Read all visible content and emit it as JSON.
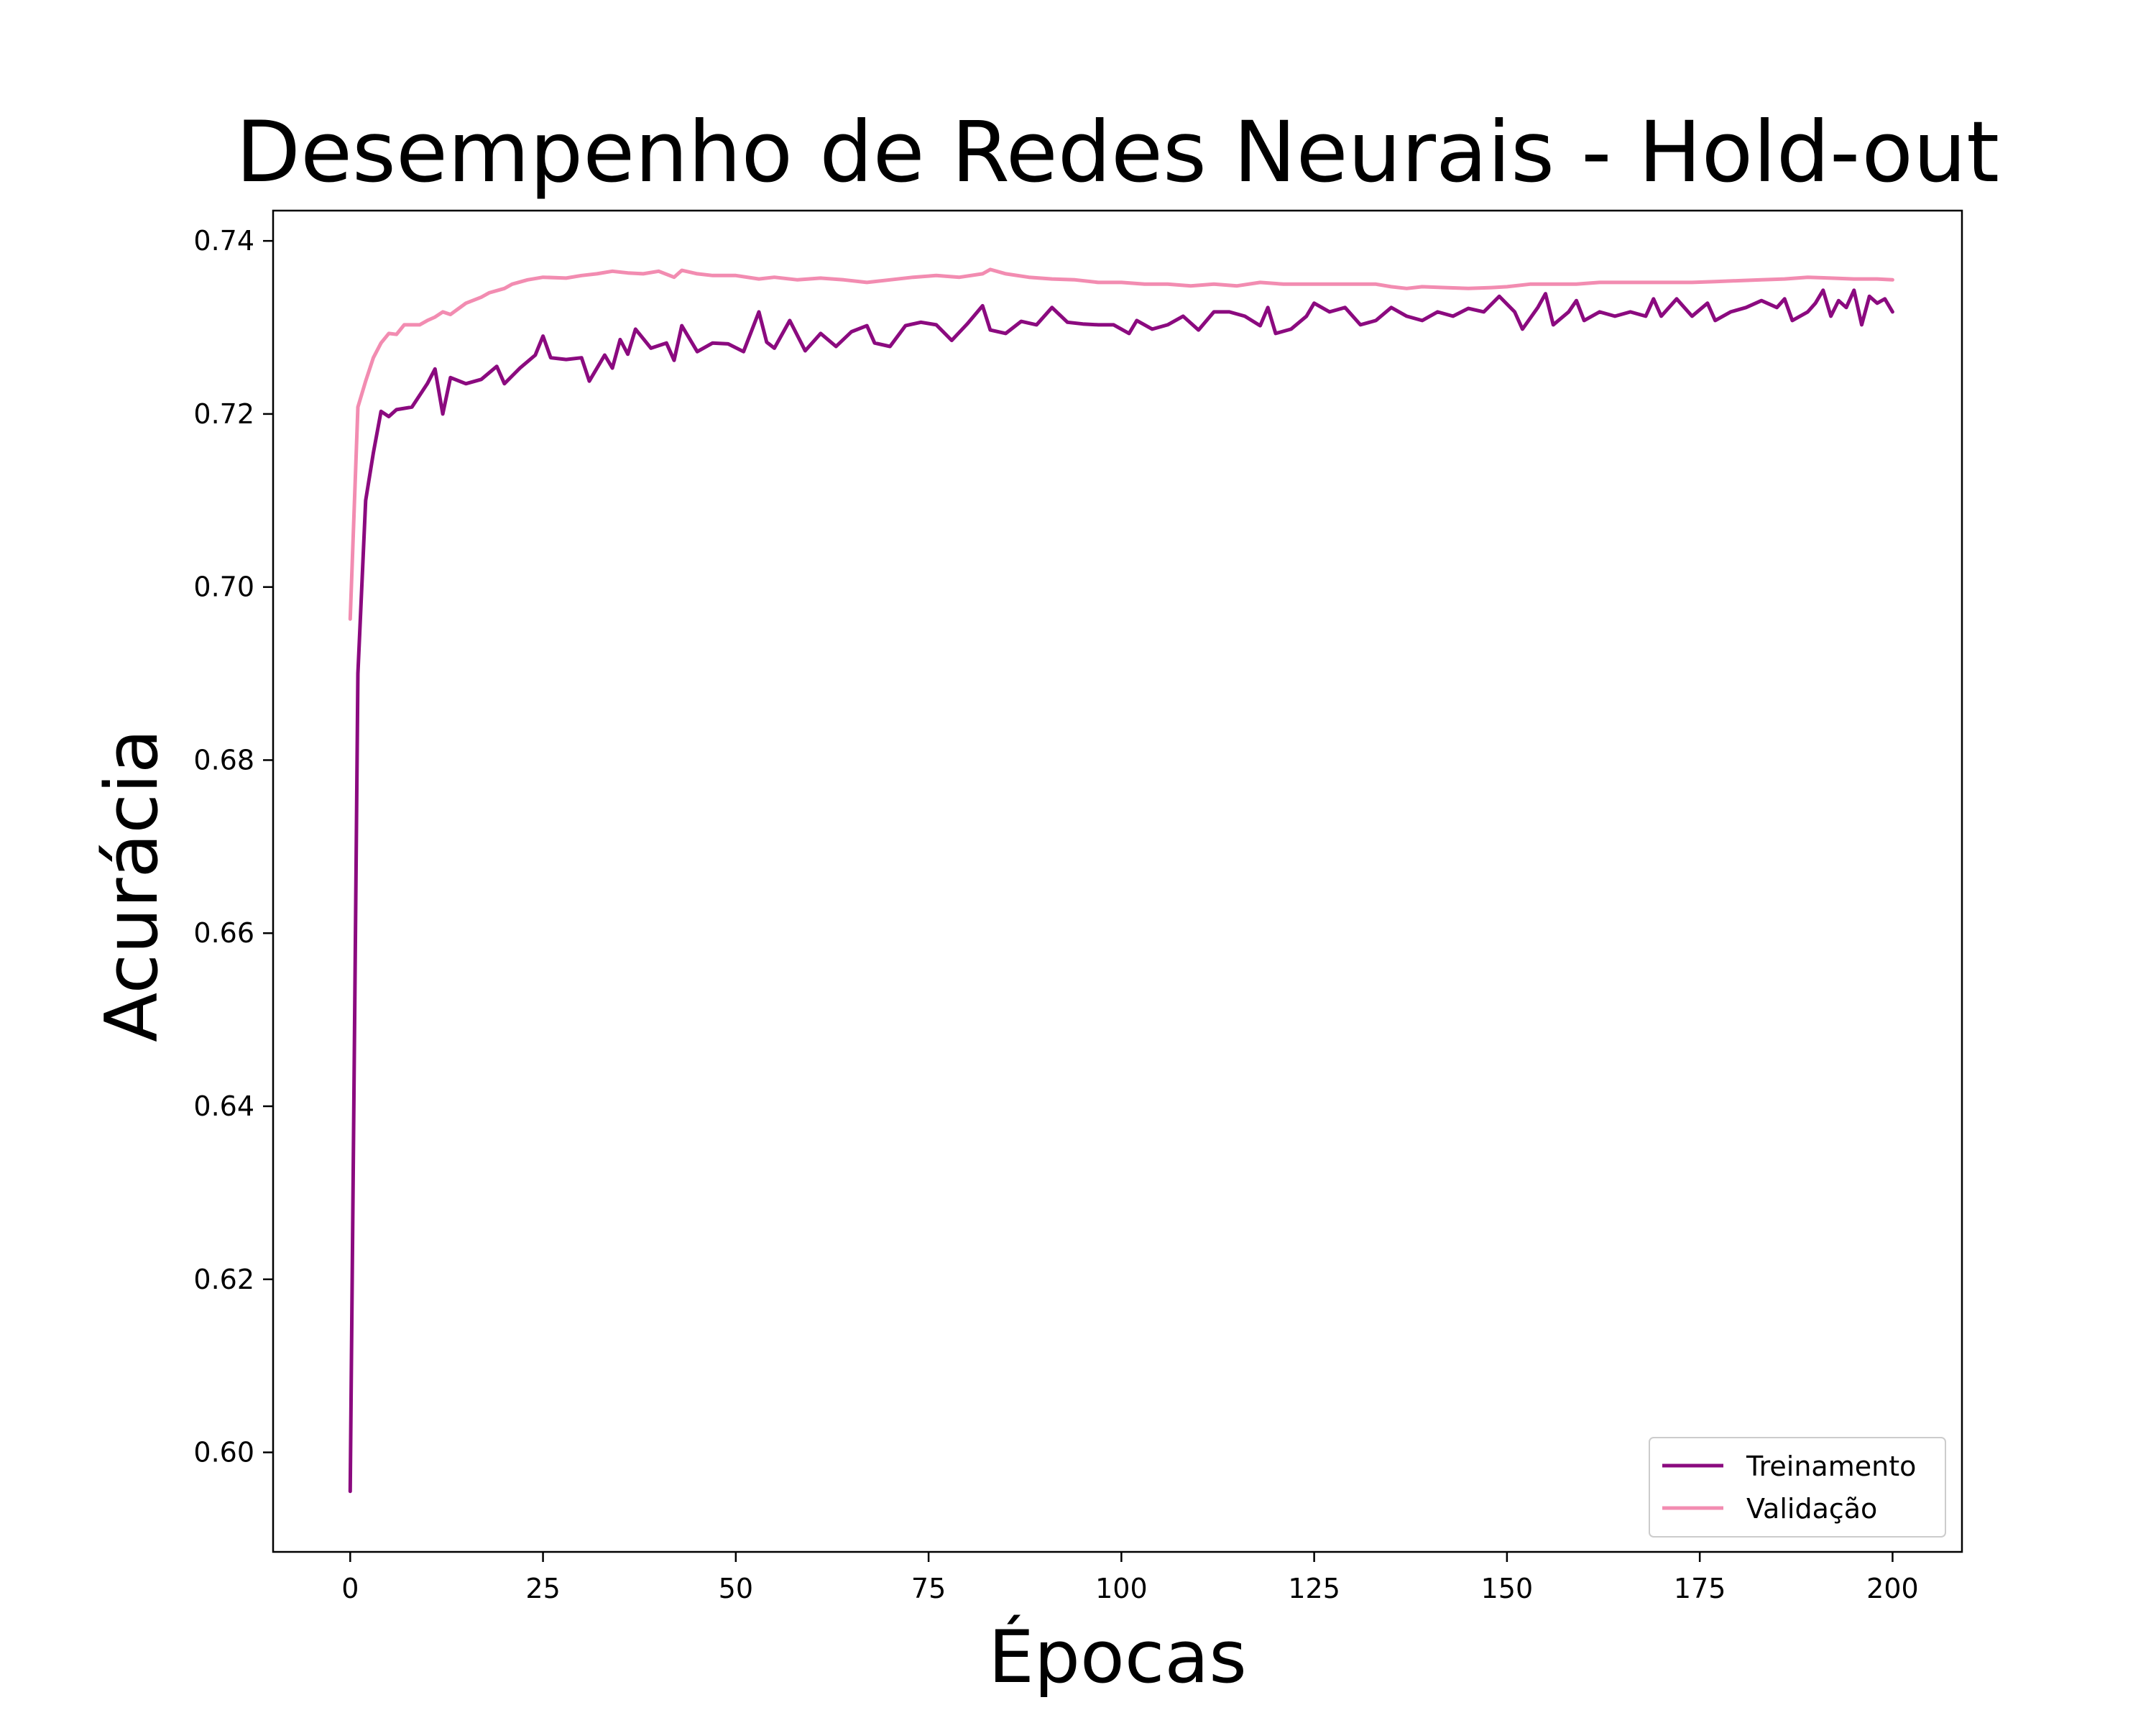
{
  "chart_data": {
    "type": "line",
    "title": "Desempenho de Redes Neurais - Hold-out",
    "xlabel": "Épocas",
    "ylabel": "Acurácia",
    "xlim": [
      -10,
      209
    ],
    "ylim": [
      0.5885,
      0.7435
    ],
    "xticks": [
      0,
      25,
      50,
      75,
      100,
      125,
      150,
      175,
      200
    ],
    "yticks": [
      0.6,
      0.62,
      0.64,
      0.66,
      0.68,
      0.7,
      0.72,
      0.74
    ],
    "grid": false,
    "legend_position": "lower right",
    "series": [
      {
        "name": "Treinamento",
        "color": "#8b0a7f",
        "keypoints": [
          [
            0,
            0.5955
          ],
          [
            1,
            0.69
          ],
          [
            2,
            0.71
          ],
          [
            3,
            0.7155
          ],
          [
            4,
            0.7203
          ],
          [
            5,
            0.7197
          ],
          [
            6,
            0.7205
          ],
          [
            8,
            0.7208
          ],
          [
            10,
            0.7235
          ],
          [
            11,
            0.7252
          ],
          [
            12,
            0.72
          ],
          [
            13,
            0.7242
          ],
          [
            15,
            0.7235
          ],
          [
            17,
            0.724
          ],
          [
            19,
            0.7255
          ],
          [
            20,
            0.7235
          ],
          [
            22,
            0.7253
          ],
          [
            24,
            0.7268
          ],
          [
            25,
            0.729
          ],
          [
            26,
            0.7265
          ],
          [
            28,
            0.7263
          ],
          [
            30,
            0.7265
          ],
          [
            31,
            0.7238
          ],
          [
            33,
            0.7268
          ],
          [
            34,
            0.7253
          ],
          [
            35,
            0.7286
          ],
          [
            36,
            0.7269
          ],
          [
            37,
            0.7298
          ],
          [
            39,
            0.7276
          ],
          [
            41,
            0.7282
          ],
          [
            42,
            0.7262
          ],
          [
            43,
            0.7302
          ],
          [
            45,
            0.7272
          ],
          [
            47,
            0.7282
          ],
          [
            49,
            0.7281
          ],
          [
            51,
            0.7272
          ],
          [
            53,
            0.7318
          ],
          [
            54,
            0.7283
          ],
          [
            55,
            0.7276
          ],
          [
            57,
            0.7308
          ],
          [
            59,
            0.7273
          ],
          [
            61,
            0.7293
          ],
          [
            63,
            0.7278
          ],
          [
            65,
            0.7295
          ],
          [
            67,
            0.7302
          ],
          [
            68,
            0.7282
          ],
          [
            70,
            0.7278
          ],
          [
            72,
            0.7302
          ],
          [
            74,
            0.7306
          ],
          [
            76,
            0.7303
          ],
          [
            78,
            0.7285
          ],
          [
            80,
            0.7304
          ],
          [
            82,
            0.7325
          ],
          [
            83,
            0.7297
          ],
          [
            85,
            0.7293
          ],
          [
            87,
            0.7307
          ],
          [
            89,
            0.7303
          ],
          [
            91,
            0.7323
          ],
          [
            93,
            0.7306
          ],
          [
            95,
            0.7304
          ],
          [
            97,
            0.7303
          ],
          [
            99,
            0.7303
          ],
          [
            101,
            0.7293
          ],
          [
            102,
            0.7308
          ],
          [
            104,
            0.7298
          ],
          [
            106,
            0.7303
          ],
          [
            108,
            0.7313
          ],
          [
            110,
            0.7297
          ],
          [
            112,
            0.7318
          ],
          [
            114,
            0.7318
          ],
          [
            116,
            0.7313
          ],
          [
            118,
            0.7302
          ],
          [
            119,
            0.7323
          ],
          [
            120,
            0.7293
          ],
          [
            122,
            0.7298
          ],
          [
            124,
            0.7313
          ],
          [
            125,
            0.7328
          ],
          [
            127,
            0.7318
          ],
          [
            129,
            0.7323
          ],
          [
            131,
            0.7303
          ],
          [
            133,
            0.7308
          ],
          [
            135,
            0.7323
          ],
          [
            137,
            0.7313
          ],
          [
            139,
            0.7308
          ],
          [
            141,
            0.7318
          ],
          [
            143,
            0.7313
          ],
          [
            145,
            0.7322
          ],
          [
            147,
            0.7318
          ],
          [
            149,
            0.7336
          ],
          [
            151,
            0.7318
          ],
          [
            152,
            0.7298
          ],
          [
            154,
            0.7323
          ],
          [
            155,
            0.7339
          ],
          [
            156,
            0.7303
          ],
          [
            158,
            0.7318
          ],
          [
            159,
            0.7331
          ],
          [
            160,
            0.7308
          ],
          [
            162,
            0.7318
          ],
          [
            164,
            0.7313
          ],
          [
            166,
            0.7318
          ],
          [
            168,
            0.7313
          ],
          [
            169,
            0.7333
          ],
          [
            170,
            0.7313
          ],
          [
            172,
            0.7333
          ],
          [
            174,
            0.7313
          ],
          [
            176,
            0.7328
          ],
          [
            177,
            0.7308
          ],
          [
            179,
            0.7318
          ],
          [
            181,
            0.7323
          ],
          [
            183,
            0.7331
          ],
          [
            185,
            0.7323
          ],
          [
            186,
            0.7333
          ],
          [
            187,
            0.7308
          ],
          [
            189,
            0.7318
          ],
          [
            190,
            0.7328
          ],
          [
            191,
            0.7343
          ],
          [
            192,
            0.7313
          ],
          [
            193,
            0.7331
          ],
          [
            194,
            0.7323
          ],
          [
            195,
            0.7343
          ],
          [
            196,
            0.7303
          ],
          [
            197,
            0.7336
          ],
          [
            198,
            0.7328
          ],
          [
            199,
            0.7333
          ],
          [
            200,
            0.7318
          ]
        ]
      },
      {
        "name": "Validação",
        "color": "#f28cb1",
        "keypoints": [
          [
            0,
            0.6963
          ],
          [
            1,
            0.7208
          ],
          [
            2,
            0.7238
          ],
          [
            3,
            0.7265
          ],
          [
            4,
            0.7282
          ],
          [
            5,
            0.7293
          ],
          [
            6,
            0.7292
          ],
          [
            7,
            0.7303
          ],
          [
            9,
            0.7303
          ],
          [
            10,
            0.7308
          ],
          [
            11,
            0.7312
          ],
          [
            12,
            0.7318
          ],
          [
            13,
            0.7315
          ],
          [
            15,
            0.7328
          ],
          [
            17,
            0.7335
          ],
          [
            18,
            0.734
          ],
          [
            20,
            0.7345
          ],
          [
            21,
            0.735
          ],
          [
            23,
            0.7355
          ],
          [
            25,
            0.7358
          ],
          [
            28,
            0.7357
          ],
          [
            30,
            0.736
          ],
          [
            32,
            0.7362
          ],
          [
            34,
            0.7365
          ],
          [
            36,
            0.7363
          ],
          [
            38,
            0.7362
          ],
          [
            40,
            0.7365
          ],
          [
            42,
            0.7358
          ],
          [
            43,
            0.7366
          ],
          [
            45,
            0.7362
          ],
          [
            47,
            0.736
          ],
          [
            50,
            0.736
          ],
          [
            53,
            0.7356
          ],
          [
            55,
            0.7358
          ],
          [
            58,
            0.7355
          ],
          [
            61,
            0.7357
          ],
          [
            64,
            0.7355
          ],
          [
            67,
            0.7352
          ],
          [
            70,
            0.7355
          ],
          [
            73,
            0.7358
          ],
          [
            76,
            0.736
          ],
          [
            79,
            0.7358
          ],
          [
            82,
            0.7362
          ],
          [
            83,
            0.7367
          ],
          [
            85,
            0.7362
          ],
          [
            88,
            0.7358
          ],
          [
            91,
            0.7356
          ],
          [
            94,
            0.7355
          ],
          [
            97,
            0.7352
          ],
          [
            100,
            0.7352
          ],
          [
            103,
            0.735
          ],
          [
            106,
            0.735
          ],
          [
            109,
            0.7348
          ],
          [
            112,
            0.735
          ],
          [
            115,
            0.7348
          ],
          [
            118,
            0.7352
          ],
          [
            121,
            0.735
          ],
          [
            124,
            0.735
          ],
          [
            127,
            0.735
          ],
          [
            130,
            0.735
          ],
          [
            133,
            0.735
          ],
          [
            135,
            0.7347
          ],
          [
            137,
            0.7345
          ],
          [
            139,
            0.7347
          ],
          [
            142,
            0.7346
          ],
          [
            145,
            0.7345
          ],
          [
            148,
            0.7346
          ],
          [
            150,
            0.7347
          ],
          [
            153,
            0.735
          ],
          [
            156,
            0.735
          ],
          [
            159,
            0.735
          ],
          [
            162,
            0.7352
          ],
          [
            165,
            0.7352
          ],
          [
            168,
            0.7352
          ],
          [
            171,
            0.7352
          ],
          [
            174,
            0.7352
          ],
          [
            177,
            0.7353
          ],
          [
            180,
            0.7354
          ],
          [
            183,
            0.7355
          ],
          [
            186,
            0.7356
          ],
          [
            189,
            0.7358
          ],
          [
            192,
            0.7357
          ],
          [
            195,
            0.7356
          ],
          [
            198,
            0.7356
          ],
          [
            200,
            0.7355
          ]
        ]
      }
    ]
  }
}
